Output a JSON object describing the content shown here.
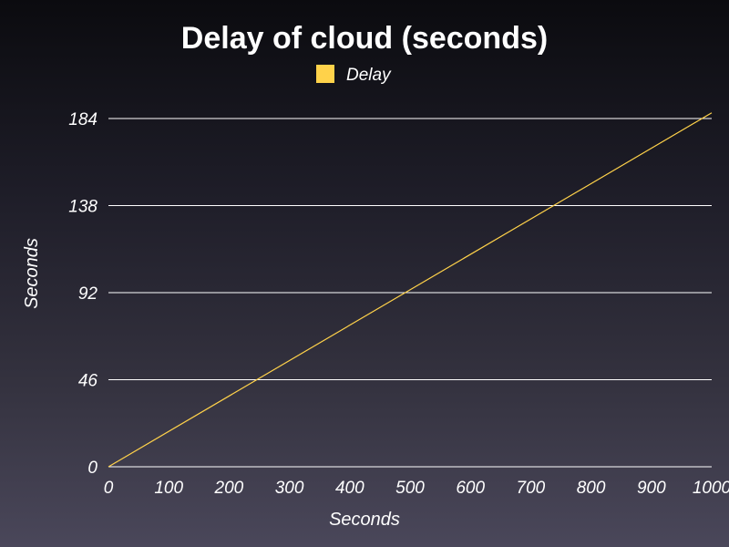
{
  "chart_data": {
    "type": "line",
    "title": "Delay of cloud (seconds)",
    "xlabel": "Seconds",
    "ylabel": "Seconds",
    "xlim": [
      0,
      1000
    ],
    "ylim": [
      0,
      184
    ],
    "x_ticks": [
      "0",
      "100",
      "200",
      "300",
      "400",
      "500",
      "600",
      "700",
      "800",
      "900",
      "1000"
    ],
    "y_ticks": [
      "0",
      "46",
      "92",
      "138",
      "184"
    ],
    "x_tick_values": [
      0,
      100,
      200,
      300,
      400,
      500,
      600,
      700,
      800,
      900,
      1000
    ],
    "y_tick_values": [
      0,
      46,
      92,
      138,
      184
    ],
    "grid": "horizontal",
    "legend_position": "top-center",
    "series": [
      {
        "name": "Delay",
        "color": "#ffd24a",
        "x": [
          0,
          1000
        ],
        "y": [
          0,
          187
        ]
      }
    ]
  },
  "colors": {
    "grid": "#ffffff",
    "text": "#ffffff",
    "series": "#ffd24a"
  }
}
